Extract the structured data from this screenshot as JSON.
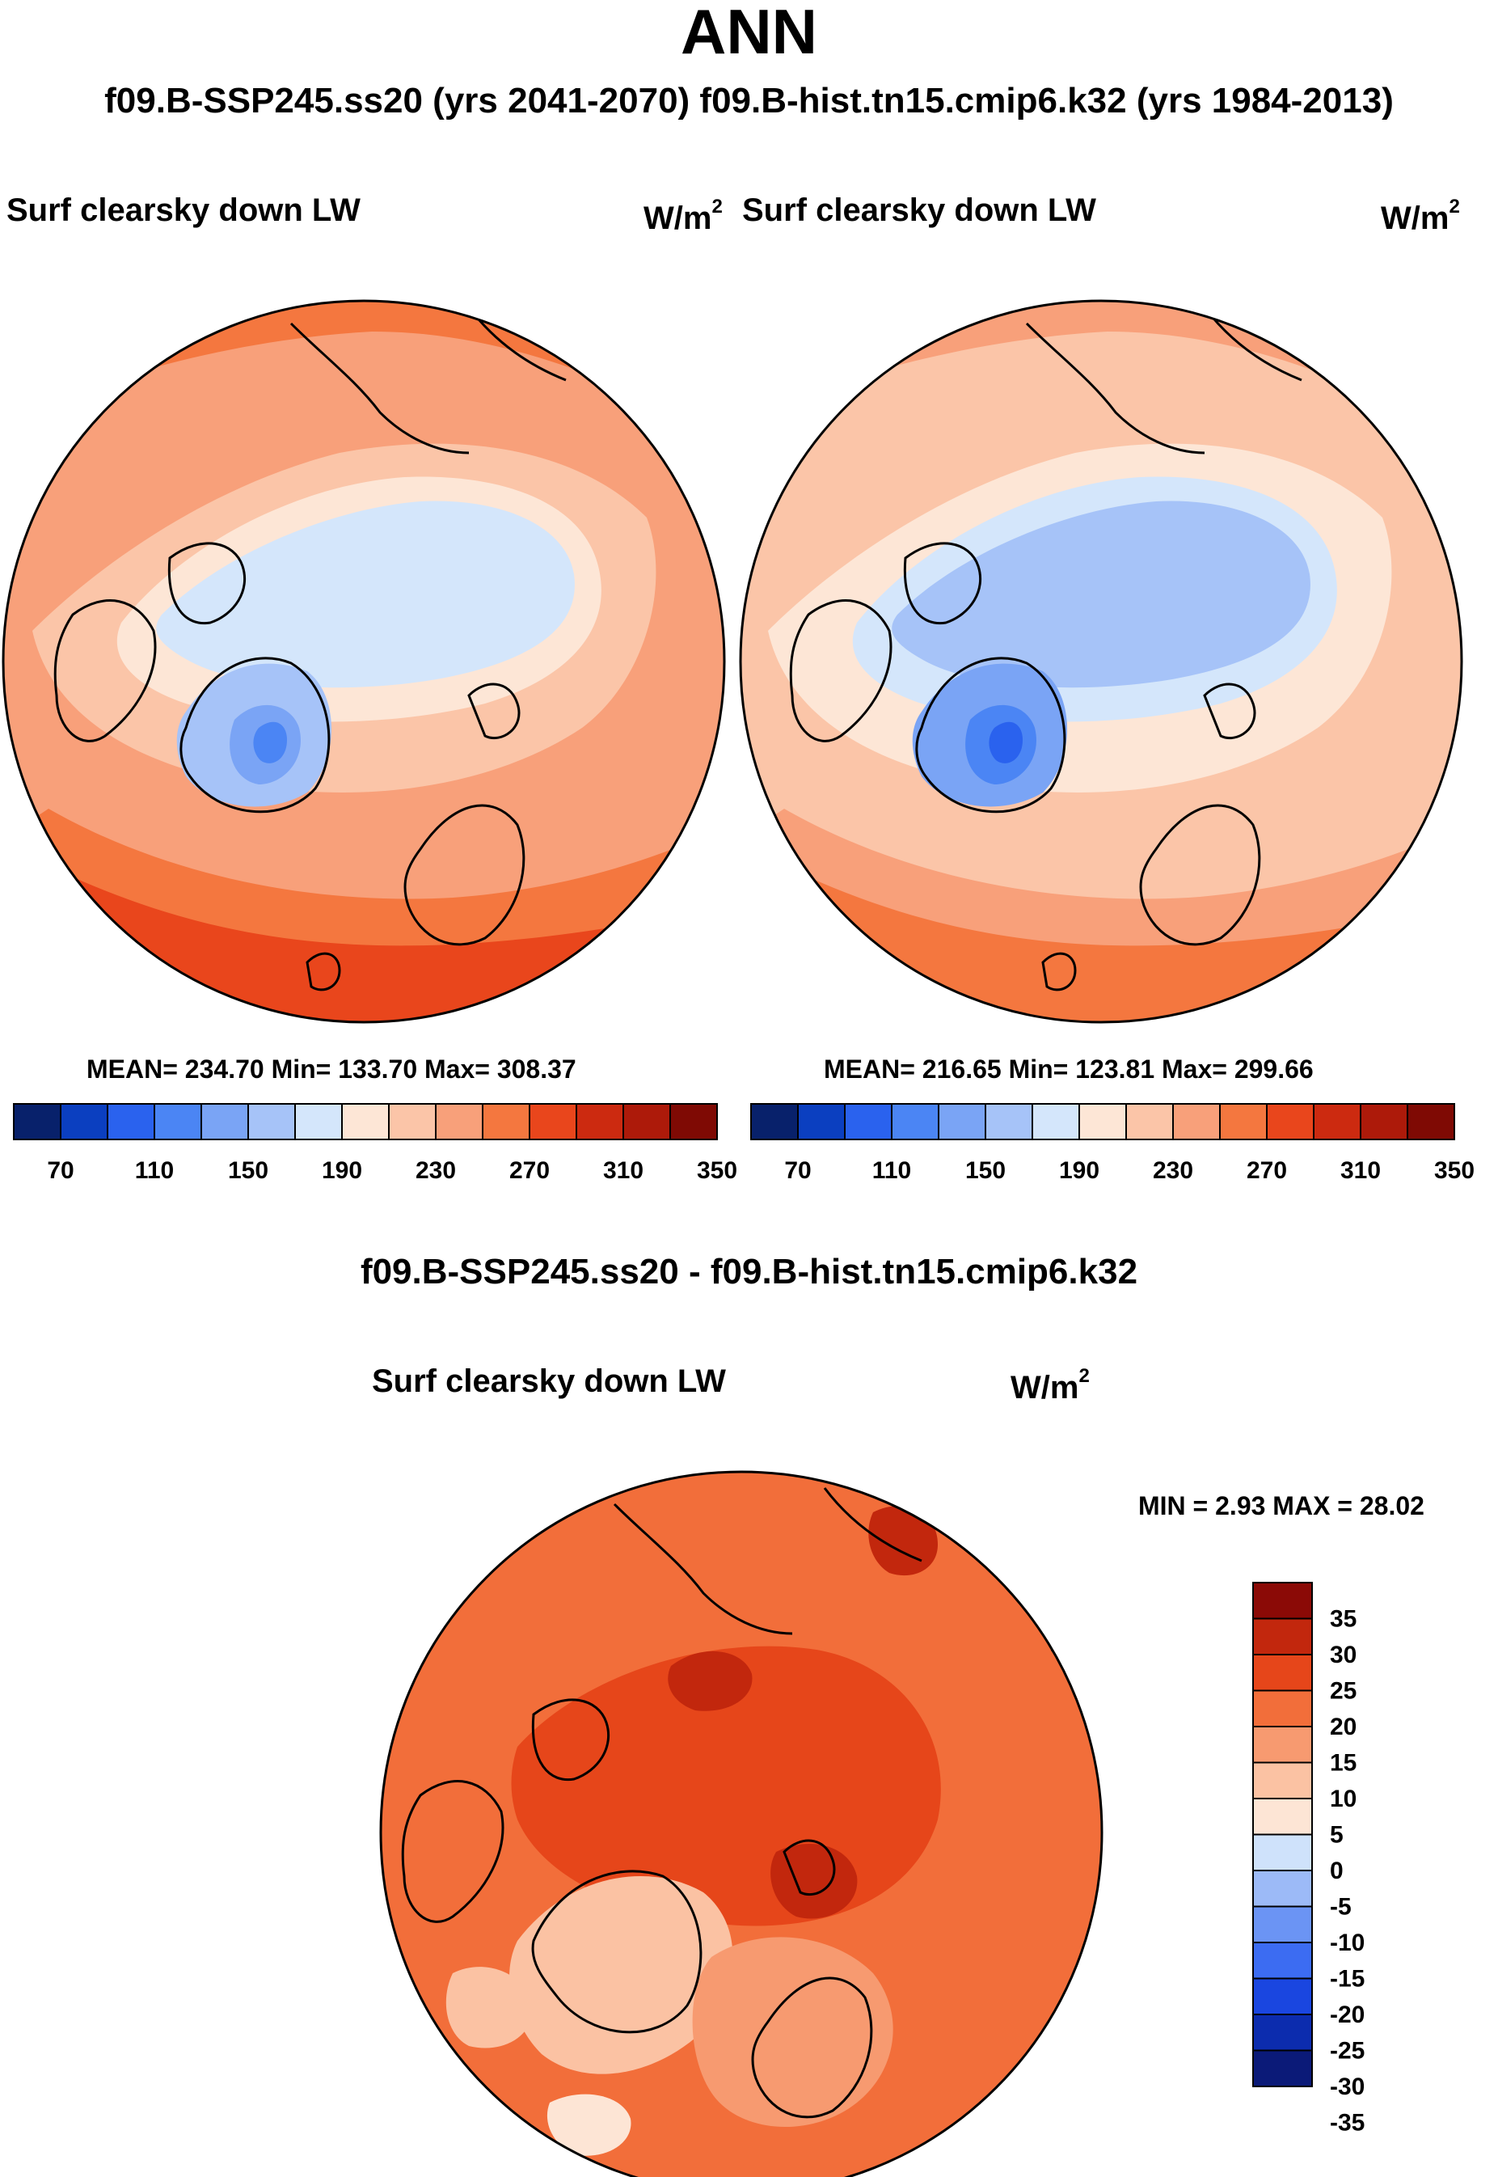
{
  "title": "ANN",
  "subtitle": "f09.B-SSP245.ss20 (yrs 2041-2070)  f09.B-hist.tn15.cmip6.k32 (yrs 1984-2013)",
  "colors": {
    "abs_palette": [
      "#08216b",
      "#0b3fc0",
      "#2a62ee",
      "#4b85f4",
      "#7aa4f5",
      "#a6c3f8",
      "#d4e6fb",
      "#fde6d6",
      "#fbc5a8",
      "#f8a07a",
      "#f4773f",
      "#e9461c",
      "#cc2a10",
      "#ad1a0a",
      "#7f0a04"
    ],
    "diff_palette": [
      "#0b1a78",
      "#0c2cae",
      "#1a46e0",
      "#3c6cf2",
      "#6b94f4",
      "#9cbaf7",
      "#cfe2fb",
      "#fde5d5",
      "#fbc2a3",
      "#f79a70",
      "#f26e3a",
      "#e6461a",
      "#c2270d",
      "#8b0a06"
    ],
    "coast": "#000000"
  },
  "chart_data": [
    {
      "type": "heatmap",
      "projection": "north polar stereographic",
      "title": "Surf clearsky down LW",
      "units": "W/m",
      "units_exp": "2",
      "stats_text": "MEAN= 234.70  Min= 133.70  Max= 308.37",
      "mean": 234.7,
      "min": 133.7,
      "max": 308.37,
      "colorbar_ticks": [
        "70",
        "110",
        "150",
        "190",
        "230",
        "270",
        "310",
        "350"
      ],
      "contour_levels": [
        70,
        90,
        110,
        130,
        150,
        170,
        190,
        210,
        230,
        250,
        270,
        290,
        310,
        330,
        350
      ],
      "pole_value": 200,
      "rim_value": 270
    },
    {
      "type": "heatmap",
      "projection": "north polar stereographic",
      "title": "Surf clearsky down LW",
      "units": "W/m",
      "units_exp": "2",
      "stats_text": "MEAN= 216.65  Min= 123.81  Max= 299.66",
      "mean": 216.65,
      "min": 123.81,
      "max": 299.66,
      "colorbar_ticks": [
        "70",
        "110",
        "150",
        "190",
        "230",
        "270",
        "310",
        "350"
      ],
      "contour_levels": [
        70,
        90,
        110,
        130,
        150,
        170,
        190,
        210,
        230,
        250,
        270,
        290,
        310,
        330,
        350
      ],
      "pole_value": 180,
      "rim_value": 260
    },
    {
      "type": "heatmap",
      "projection": "north polar stereographic",
      "diff_title": "f09.B-SSP245.ss20 - f09.B-hist.tn15.cmip6.k32",
      "title": "Surf clearsky down LW",
      "units": "W/m",
      "units_exp": "2",
      "stats_text": "MIN =   2.93 MAX =  28.02",
      "min": 2.93,
      "max": 28.02,
      "colorbar_ticks": [
        "35",
        "30",
        "25",
        "20",
        "15",
        "10",
        "5",
        "0",
        "-5",
        "-10",
        "-15",
        "-20",
        "-25",
        "-30",
        "-35"
      ],
      "contour_levels": [
        -35,
        -30,
        -25,
        -20,
        -15,
        -10,
        -5,
        0,
        5,
        10,
        15,
        20,
        25,
        30,
        35
      ]
    }
  ]
}
